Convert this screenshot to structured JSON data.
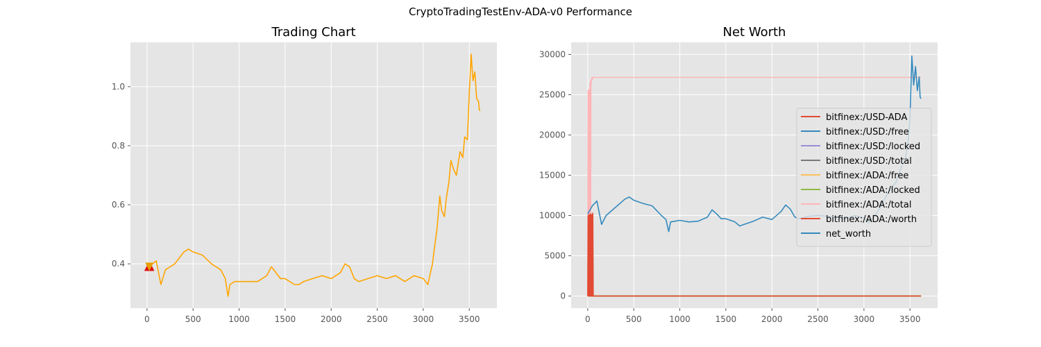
{
  "figure": {
    "suptitle": "CryptoTradingTestEnv-ADA-v0 Performance",
    "style": "ggplot",
    "background": "#E5E5E5",
    "grid_color": "#FFFFFF"
  },
  "chart_data": [
    {
      "type": "line",
      "title": "Trading Chart",
      "xlabel": "",
      "ylabel": "",
      "xlim": [
        -180,
        3800
      ],
      "ylim": [
        0.25,
        1.15
      ],
      "xticks": [
        0,
        500,
        1000,
        1500,
        2000,
        2500,
        3000,
        3500
      ],
      "yticks": [
        0.4,
        0.6,
        0.8,
        1.0
      ],
      "ytick_labels": [
        "0.4",
        "0.6",
        "0.8",
        "1.0"
      ],
      "grid": true,
      "series": [
        {
          "color": "#FFA500",
          "x": [
            0,
            60,
            100,
            150,
            200,
            300,
            400,
            450,
            500,
            600,
            700,
            800,
            850,
            880,
            900,
            950,
            1000,
            1100,
            1200,
            1300,
            1350,
            1400,
            1450,
            1500,
            1600,
            1650,
            1700,
            1800,
            1900,
            2000,
            2100,
            2150,
            2200,
            2250,
            2300,
            2400,
            2500,
            2600,
            2700,
            2800,
            2900,
            3000,
            3050,
            3100,
            3120,
            3150,
            3180,
            3200,
            3230,
            3250,
            3280,
            3300,
            3330,
            3360,
            3400,
            3430,
            3450,
            3480,
            3500,
            3520,
            3540,
            3560,
            3580,
            3600,
            3610,
            3620
          ],
          "y": [
            0.39,
            0.4,
            0.41,
            0.33,
            0.38,
            0.4,
            0.44,
            0.45,
            0.44,
            0.43,
            0.4,
            0.38,
            0.35,
            0.29,
            0.33,
            0.34,
            0.34,
            0.34,
            0.34,
            0.36,
            0.39,
            0.37,
            0.35,
            0.35,
            0.33,
            0.33,
            0.34,
            0.35,
            0.36,
            0.35,
            0.37,
            0.4,
            0.39,
            0.35,
            0.34,
            0.35,
            0.36,
            0.35,
            0.36,
            0.34,
            0.36,
            0.35,
            0.33,
            0.4,
            0.45,
            0.52,
            0.63,
            0.58,
            0.56,
            0.62,
            0.68,
            0.75,
            0.72,
            0.7,
            0.78,
            0.76,
            0.83,
            0.82,
            0.98,
            1.11,
            1.02,
            1.05,
            0.96,
            0.95,
            0.92,
            0.92
          ]
        }
      ],
      "markers": [
        {
          "type": "buy",
          "symbol": "triangle-up",
          "color": "#DD1111",
          "x": [
            15,
            35
          ],
          "y": [
            0.39,
            0.39
          ]
        },
        {
          "type": "sell",
          "symbol": "triangle-down",
          "color": "#E8A000",
          "x": [
            25
          ],
          "y": [
            0.39
          ]
        }
      ]
    },
    {
      "type": "line",
      "title": "Net Worth",
      "xlabel": "",
      "ylabel": "",
      "xlim": [
        -180,
        3800
      ],
      "ylim": [
        -1500,
        31500
      ],
      "xticks": [
        0,
        500,
        1000,
        1500,
        2000,
        2500,
        3000,
        3500
      ],
      "yticks": [
        0,
        5000,
        10000,
        15000,
        20000,
        25000,
        30000
      ],
      "grid": true,
      "legend_position": "right",
      "series": [
        {
          "name": "bitfinex:/USD-ADA",
          "color": "#E24A33",
          "x": [
            0,
            3620
          ],
          "y": [
            0.39,
            0.92
          ]
        },
        {
          "name": "bitfinex:/USD:/free",
          "color": "#348ABD",
          "x": [
            0,
            3620
          ],
          "y": [
            0,
            0
          ]
        },
        {
          "name": "bitfinex:/USD:/locked",
          "color": "#988ED5",
          "x": [
            0,
            3620
          ],
          "y": [
            0,
            0
          ]
        },
        {
          "name": "bitfinex:/USD:/total",
          "color": "#777777",
          "x": [
            0,
            3620
          ],
          "y": [
            0,
            0
          ]
        },
        {
          "name": "bitfinex:/ADA:/free",
          "color": "#FBC15E",
          "x": [
            0,
            3620
          ],
          "y": [
            0,
            0
          ]
        },
        {
          "name": "bitfinex:/ADA:/locked",
          "color": "#8EBA42",
          "x": [
            0,
            3620
          ],
          "y": [
            0,
            0
          ]
        },
        {
          "name": "bitfinex:/ADA:/total",
          "color": "#FFB5B8",
          "x": [
            0,
            5,
            10,
            15,
            20,
            25,
            30,
            35,
            40,
            45,
            50,
            55,
            3620
          ],
          "y": [
            0,
            25600,
            0,
            25600,
            0,
            26500,
            0,
            26800,
            26500,
            27100,
            26900,
            27150,
            27150
          ]
        },
        {
          "name": "bitfinex:/ADA:/worth",
          "color": "#E24A33",
          "x": [
            0,
            5,
            10,
            15,
            20,
            25,
            30,
            35,
            40,
            45,
            50,
            55,
            60,
            3620
          ],
          "y": [
            0,
            10000,
            0,
            10100,
            0,
            10100,
            0,
            10200,
            0,
            10100,
            0,
            10300,
            0,
            0
          ]
        },
        {
          "name": "net_worth",
          "color": "#348ABD",
          "x": [
            0,
            50,
            100,
            150,
            200,
            300,
            400,
            450,
            500,
            600,
            700,
            800,
            850,
            880,
            900,
            950,
            1000,
            1100,
            1200,
            1300,
            1350,
            1400,
            1450,
            1500,
            1600,
            1650,
            1700,
            1800,
            1900,
            2000,
            2100,
            2150,
            2200,
            2250,
            2300,
            2400,
            2500,
            2600,
            2700,
            2800,
            2900,
            3000,
            3050,
            3100,
            3150,
            3200,
            3250,
            3300,
            3350,
            3400,
            3450,
            3480,
            3500,
            3520,
            3540,
            3560,
            3580,
            3600,
            3610,
            3620
          ],
          "y": [
            10200,
            11200,
            11800,
            8900,
            10000,
            11000,
            12000,
            12300,
            11900,
            11500,
            11200,
            10000,
            9500,
            8000,
            9200,
            9300,
            9400,
            9200,
            9300,
            9800,
            10700,
            10200,
            9600,
            9600,
            9200,
            8700,
            8900,
            9300,
            9800,
            9500,
            10500,
            11300,
            10800,
            9800,
            9600,
            9900,
            10000,
            9900,
            9800,
            9600,
            10000,
            9700,
            9100,
            9700,
            10500,
            11500,
            12600,
            13400,
            14200,
            15800,
            17200,
            19200,
            22000,
            29800,
            26200,
            28500,
            25500,
            27200,
            24700,
            24500
          ]
        }
      ]
    }
  ]
}
